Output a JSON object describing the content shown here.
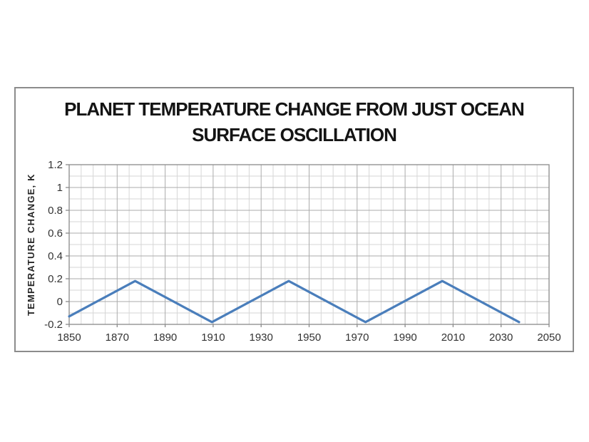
{
  "chart_data": {
    "type": "line",
    "title": "PLANET TEMPERATURE CHANGE FROM JUST OCEAN SURFACE OSCILLATION",
    "title_lines": [
      "PLANET TEMPERATURE CHANGE FROM JUST OCEAN",
      "SURFACE OSCILLATION"
    ],
    "xlabel": "",
    "ylabel": "TEMPERATURE CHANGE, K",
    "xlim": [
      1850,
      2050
    ],
    "ylim": [
      -0.2,
      1.2
    ],
    "x_major_ticks": [
      "1850",
      "1870",
      "1890",
      "1910",
      "1930",
      "1950",
      "1970",
      "1990",
      "2010",
      "2030",
      "2050"
    ],
    "y_major_ticks": [
      "1.2",
      "1",
      "0.8",
      "0.6",
      "0.4",
      "0.2",
      "0",
      "-0.2"
    ],
    "x_minor_step": 5,
    "y_minor_step": 0.1,
    "grid": "major and minor, both axes",
    "legend_position": "none",
    "series": [
      {
        "name": "temperature-change",
        "color": "#4a7ebb",
        "points": [
          [
            1850,
            -0.13
          ],
          [
            1877.5,
            0.18
          ],
          [
            1909.5,
            -0.18
          ],
          [
            1941.5,
            0.18
          ],
          [
            1973.5,
            -0.18
          ],
          [
            2005.5,
            0.18
          ],
          [
            2037.5,
            -0.18
          ]
        ]
      }
    ],
    "colors": {
      "minor_grid": "#d6d6d6",
      "major_grid": "#ababab",
      "plot_border": "#8a8a8a",
      "tick": "#8a8a8a",
      "tick_label": "#333333",
      "title": "#141414",
      "frame_border": "#8c8c8c",
      "background": "#ffffff"
    }
  }
}
